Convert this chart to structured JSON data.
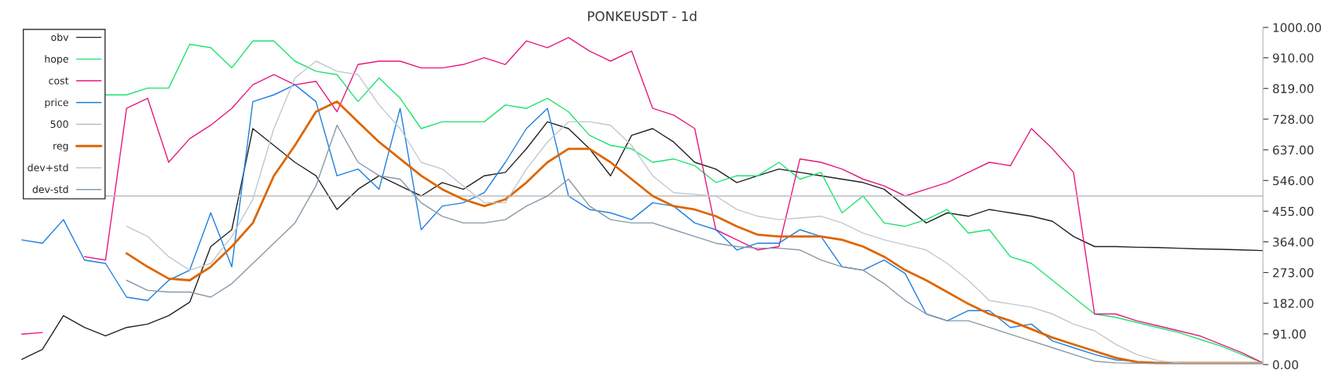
{
  "chart_data": {
    "type": "line",
    "title": "PONKEUSDT - 1d",
    "categories": [
      null,
      null,
      null,
      null,
      null,
      null,
      null,
      null,
      null,
      null,
      null,
      null,
      null,
      null,
      null,
      null,
      null,
      null,
      null,
      null,
      null,
      null,
      null,
      null,
      null,
      null,
      null,
      null,
      null,
      null,
      null,
      null,
      null,
      null,
      null,
      null,
      null,
      null,
      null,
      null,
      null,
      null,
      null,
      null,
      null,
      null,
      null,
      null,
      null,
      null,
      null,
      null,
      null,
      null,
      null,
      null,
      null,
      null,
      null,
      null
    ],
    "series": [
      {
        "name": "obv",
        "color": "#222222",
        "values": [
          15,
          45,
          145,
          110,
          85,
          110,
          120,
          145,
          185,
          350,
          400,
          700,
          650,
          600,
          560,
          460,
          520,
          560,
          530,
          500,
          540,
          520,
          560,
          570,
          640,
          720,
          700,
          640,
          560,
          680,
          700,
          660,
          600,
          580,
          540,
          560,
          580,
          570,
          560,
          550,
          540,
          520,
          470,
          420,
          450,
          440,
          460,
          450,
          440,
          425,
          380,
          350,
          350,
          348,
          347,
          345,
          343,
          342,
          340,
          338
        ]
      },
      {
        "name": "hope",
        "color": "#1ee36e",
        "values": [
          null,
          null,
          null,
          null,
          800,
          800,
          820,
          820,
          950,
          940,
          880,
          960,
          960,
          900,
          870,
          860,
          780,
          850,
          790,
          700,
          720,
          720,
          720,
          770,
          760,
          790,
          750,
          680,
          650,
          640,
          600,
          610,
          590,
          540,
          560,
          560,
          600,
          550,
          570,
          450,
          500,
          420,
          410,
          430,
          460,
          390,
          400,
          320,
          300,
          250,
          200,
          150,
          140,
          125,
          110,
          95,
          75,
          55,
          30,
          5
        ]
      },
      {
        "name": "cost",
        "color": "#e6197e",
        "values": [
          90,
          95,
          null,
          320,
          310,
          760,
          790,
          600,
          670,
          710,
          760,
          830,
          860,
          830,
          840,
          750,
          890,
          900,
          900,
          880,
          880,
          890,
          910,
          890,
          960,
          940,
          970,
          930,
          900,
          930,
          760,
          740,
          700,
          400,
          370,
          340,
          350,
          610,
          600,
          580,
          550,
          530,
          500,
          520,
          540,
          570,
          600,
          590,
          700,
          640,
          570,
          150,
          150,
          130,
          115,
          100,
          85,
          60,
          35,
          5
        ]
      },
      {
        "name": "price",
        "color": "#1e7fe0",
        "values": [
          370,
          360,
          430,
          310,
          300,
          200,
          190,
          250,
          280,
          450,
          290,
          780,
          800,
          830,
          780,
          560,
          580,
          520,
          760,
          400,
          470,
          480,
          510,
          600,
          700,
          760,
          500,
          460,
          450,
          430,
          480,
          470,
          420,
          400,
          340,
          360,
          360,
          400,
          380,
          290,
          280,
          310,
          270,
          150,
          130,
          160,
          160,
          110,
          120,
          70,
          50,
          30,
          14,
          10,
          null,
          null,
          null,
          null,
          null,
          null
        ]
      },
      {
        "name": "500",
        "color": "#bbbbbb",
        "values": [
          null,
          null,
          null,
          null,
          500,
          500,
          500,
          500,
          500,
          500,
          500,
          500,
          500,
          500,
          500,
          500,
          500,
          500,
          500,
          500,
          500,
          500,
          500,
          500,
          500,
          500,
          500,
          500,
          500,
          500,
          500,
          500,
          500,
          500,
          500,
          500,
          500,
          500,
          500,
          500,
          500,
          500,
          500,
          500,
          500,
          500,
          500,
          500,
          500,
          500,
          500,
          500,
          500,
          500,
          500,
          500,
          500,
          500,
          500,
          500
        ]
      },
      {
        "name": "reg",
        "color": "#dd6600",
        "values": [
          null,
          null,
          null,
          null,
          null,
          330,
          290,
          255,
          250,
          290,
          350,
          420,
          560,
          650,
          750,
          780,
          720,
          660,
          610,
          560,
          520,
          490,
          470,
          490,
          540,
          600,
          640,
          640,
          600,
          550,
          500,
          470,
          460,
          440,
          410,
          385,
          380,
          380,
          380,
          370,
          350,
          320,
          280,
          250,
          215,
          180,
          150,
          130,
          105,
          80,
          60,
          40,
          20,
          8,
          5,
          5,
          5,
          5,
          5,
          5
        ]
      },
      {
        "name": "dev+std",
        "color": "#c0c8d0",
        "values": [
          null,
          null,
          null,
          null,
          null,
          410,
          380,
          320,
          280,
          300,
          380,
          490,
          700,
          850,
          900,
          870,
          860,
          770,
          700,
          600,
          580,
          530,
          480,
          480,
          580,
          660,
          720,
          720,
          710,
          650,
          560,
          510,
          505,
          500,
          460,
          440,
          430,
          435,
          440,
          420,
          390,
          370,
          355,
          340,
          300,
          250,
          190,
          180,
          170,
          150,
          120,
          100,
          60,
          30,
          12,
          5,
          5,
          5,
          5,
          5
        ]
      },
      {
        "name": "dev-std",
        "color": "#8899a6",
        "values": [
          null,
          null,
          null,
          null,
          null,
          250,
          220,
          215,
          215,
          200,
          240,
          300,
          360,
          420,
          530,
          710,
          600,
          560,
          550,
          480,
          440,
          420,
          420,
          430,
          470,
          500,
          550,
          470,
          430,
          420,
          420,
          400,
          380,
          360,
          350,
          345,
          345,
          340,
          310,
          290,
          280,
          240,
          190,
          150,
          130,
          130,
          110,
          90,
          70,
          50,
          30,
          10,
          5,
          4,
          3,
          3,
          3,
          3,
          3,
          3
        ]
      }
    ],
    "ylim": [
      0,
      1000
    ],
    "yticks": [
      {
        "value": 0,
        "label": "0.00"
      },
      {
        "value": 91,
        "label": "91.00"
      },
      {
        "value": 182,
        "label": "182.00"
      },
      {
        "value": 273,
        "label": "273.00"
      },
      {
        "value": 364,
        "label": "364.00"
      },
      {
        "value": 455,
        "label": "455.00"
      },
      {
        "value": 546,
        "label": "546.00"
      },
      {
        "value": 637,
        "label": "637.00"
      },
      {
        "value": 728,
        "label": "728.00"
      },
      {
        "value": 819,
        "label": "819.00"
      },
      {
        "value": 910,
        "label": "910.00"
      },
      {
        "value": 1000,
        "label": "1000.00"
      }
    ],
    "legend": "top left",
    "tick_labels": "y",
    "grid": false,
    "marker": "none",
    "line_style": "solid"
  }
}
